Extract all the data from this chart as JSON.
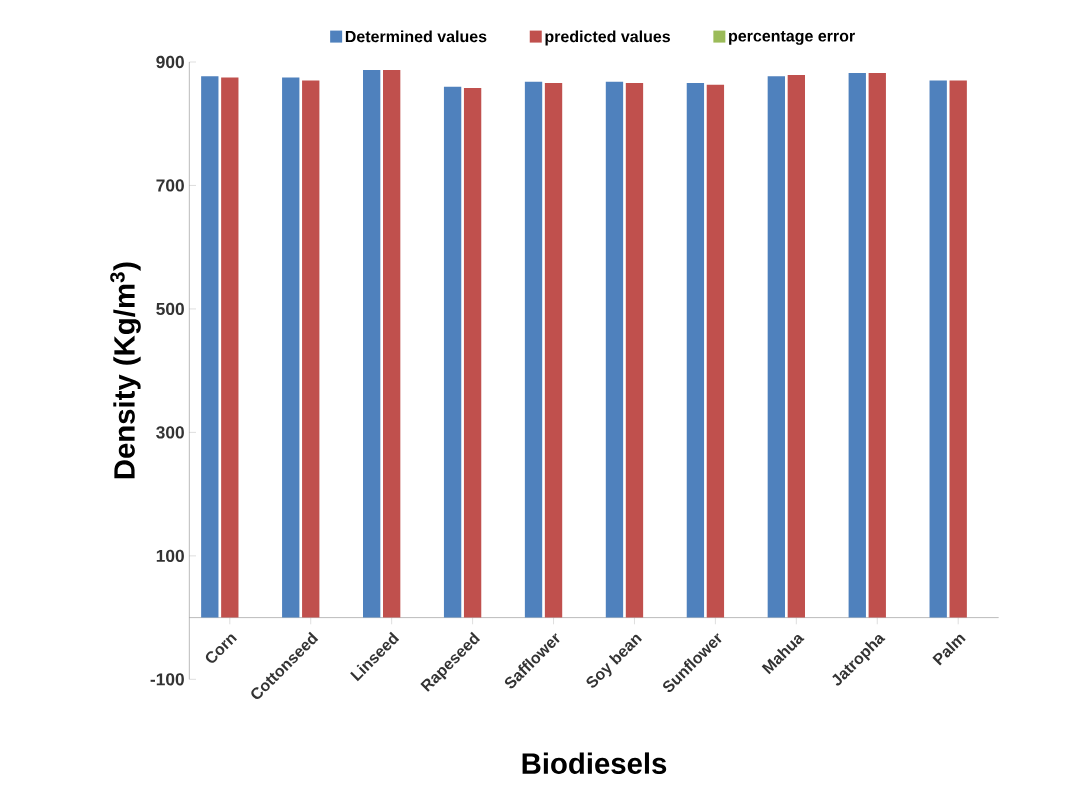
{
  "chart_data": {
    "type": "bar",
    "xlabel": "Biodiesels",
    "ylabel": "Density (Kg/m$^{3}$)",
    "categories": [
      "Corn",
      "Cottonseed",
      "Linseed",
      "Rapeseed",
      "Safflower",
      "Soy bean",
      "Sunflower",
      "Mahua",
      "Jatropha",
      "Palm"
    ],
    "series": [
      {
        "name": "Determined values",
        "color": "#4f81bd",
        "values": [
          877,
          875,
          887,
          860,
          868,
          868,
          866,
          877,
          882,
          870
        ]
      },
      {
        "name": "predicted values",
        "color": "#c0504d",
        "values": [
          875,
          870,
          887,
          858,
          866,
          866,
          863,
          879,
          882,
          870
        ]
      },
      {
        "name": "percentage error",
        "color": "#9bbb59",
        "values": [
          0,
          0,
          0,
          0,
          0,
          0,
          0,
          0,
          0,
          0
        ]
      }
    ],
    "ylim": [
      -100,
      900
    ],
    "yticks": [
      -100,
      100,
      300,
      500,
      700,
      900
    ],
    "grid": false,
    "legend": "top"
  }
}
